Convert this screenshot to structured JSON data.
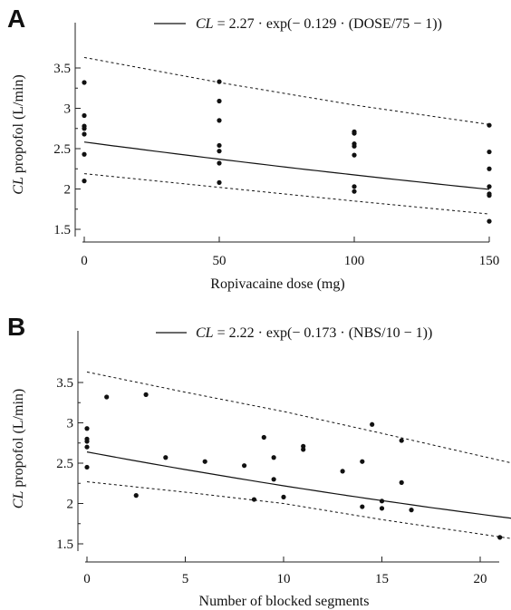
{
  "chart_data": [
    {
      "panel": "A",
      "type": "scatter",
      "xlabel": "Ropivacaine dose (mg)",
      "ylabel_italic": "CL",
      "ylabel_rest": " propofol (L/min)",
      "legend_italic": "CL",
      "legend_rest": " = 2.27 · exp(− 0.129 · (DOSE/75 − 1))",
      "xlim": [
        0,
        150
      ],
      "ylim": [
        1.5,
        3.7
      ],
      "xticks": [
        0,
        50,
        100,
        150
      ],
      "yticks": [
        1.5,
        2,
        2.5,
        3,
        3.5
      ],
      "points": [
        [
          0,
          3.32
        ],
        [
          0,
          2.91
        ],
        [
          0,
          2.78
        ],
        [
          0,
          2.75
        ],
        [
          0,
          2.68
        ],
        [
          0,
          2.43
        ],
        [
          0,
          2.1
        ],
        [
          50,
          3.33
        ],
        [
          50,
          3.09
        ],
        [
          50,
          2.85
        ],
        [
          50,
          2.54
        ],
        [
          50,
          2.47
        ],
        [
          50,
          2.32
        ],
        [
          50,
          2.08
        ],
        [
          100,
          2.71
        ],
        [
          100,
          2.69
        ],
        [
          100,
          2.56
        ],
        [
          100,
          2.53
        ],
        [
          100,
          2.42
        ],
        [
          100,
          2.03
        ],
        [
          100,
          1.97
        ],
        [
          150,
          2.79
        ],
        [
          150,
          2.46
        ],
        [
          150,
          2.25
        ],
        [
          150,
          2.03
        ],
        [
          150,
          1.94
        ],
        [
          150,
          1.92
        ],
        [
          150,
          1.6
        ]
      ],
      "fit": {
        "a": 2.27,
        "b": 0.129,
        "ref": 75
      },
      "ci_upper": [
        [
          0,
          3.63
        ],
        [
          50,
          3.32
        ],
        [
          100,
          3.04
        ],
        [
          150,
          2.8
        ]
      ],
      "ci_lower": [
        [
          0,
          2.19
        ],
        [
          50,
          2.02
        ],
        [
          100,
          1.85
        ],
        [
          150,
          1.69
        ]
      ]
    },
    {
      "panel": "B",
      "type": "scatter",
      "xlabel": "Number of blocked segments",
      "ylabel_italic": "CL",
      "ylabel_rest": " propofol (L/min)",
      "legend_italic": "CL",
      "legend_rest": " = 2.22 · exp(− 0.173 · (NBS/10 − 1))",
      "xlim": [
        0,
        22
      ],
      "ylim": [
        1.5,
        3.7
      ],
      "xticks": [
        0,
        5,
        10,
        15,
        20
      ],
      "yticks": [
        1.5,
        2,
        2.5,
        3,
        3.5
      ],
      "points": [
        [
          0,
          2.93
        ],
        [
          0,
          2.8
        ],
        [
          0,
          2.77
        ],
        [
          0,
          2.7
        ],
        [
          0,
          2.45
        ],
        [
          1,
          3.32
        ],
        [
          2.5,
          2.1
        ],
        [
          3,
          3.35
        ],
        [
          4,
          2.57
        ],
        [
          6,
          2.52
        ],
        [
          8,
          2.47
        ],
        [
          8.5,
          2.05
        ],
        [
          9,
          2.82
        ],
        [
          9.5,
          2.57
        ],
        [
          9.5,
          2.3
        ],
        [
          10,
          2.08
        ],
        [
          11,
          2.71
        ],
        [
          11,
          2.67
        ],
        [
          13,
          2.4
        ],
        [
          14,
          2.52
        ],
        [
          14,
          1.96
        ],
        [
          14.5,
          2.98
        ],
        [
          15,
          2.03
        ],
        [
          15,
          1.94
        ],
        [
          16,
          2.78
        ],
        [
          16,
          2.26
        ],
        [
          16.5,
          1.92
        ],
        [
          21,
          1.58
        ]
      ],
      "fit": {
        "a": 2.22,
        "b": 0.173,
        "ref": 10
      },
      "ci_upper": [
        [
          0,
          3.63
        ],
        [
          5,
          3.38
        ],
        [
          10,
          3.14
        ],
        [
          15,
          2.87
        ],
        [
          22,
          2.48
        ]
      ],
      "ci_lower": [
        [
          0,
          2.27
        ],
        [
          5,
          2.14
        ],
        [
          10,
          2.0
        ],
        [
          15,
          1.8
        ],
        [
          22,
          1.55
        ]
      ]
    }
  ]
}
